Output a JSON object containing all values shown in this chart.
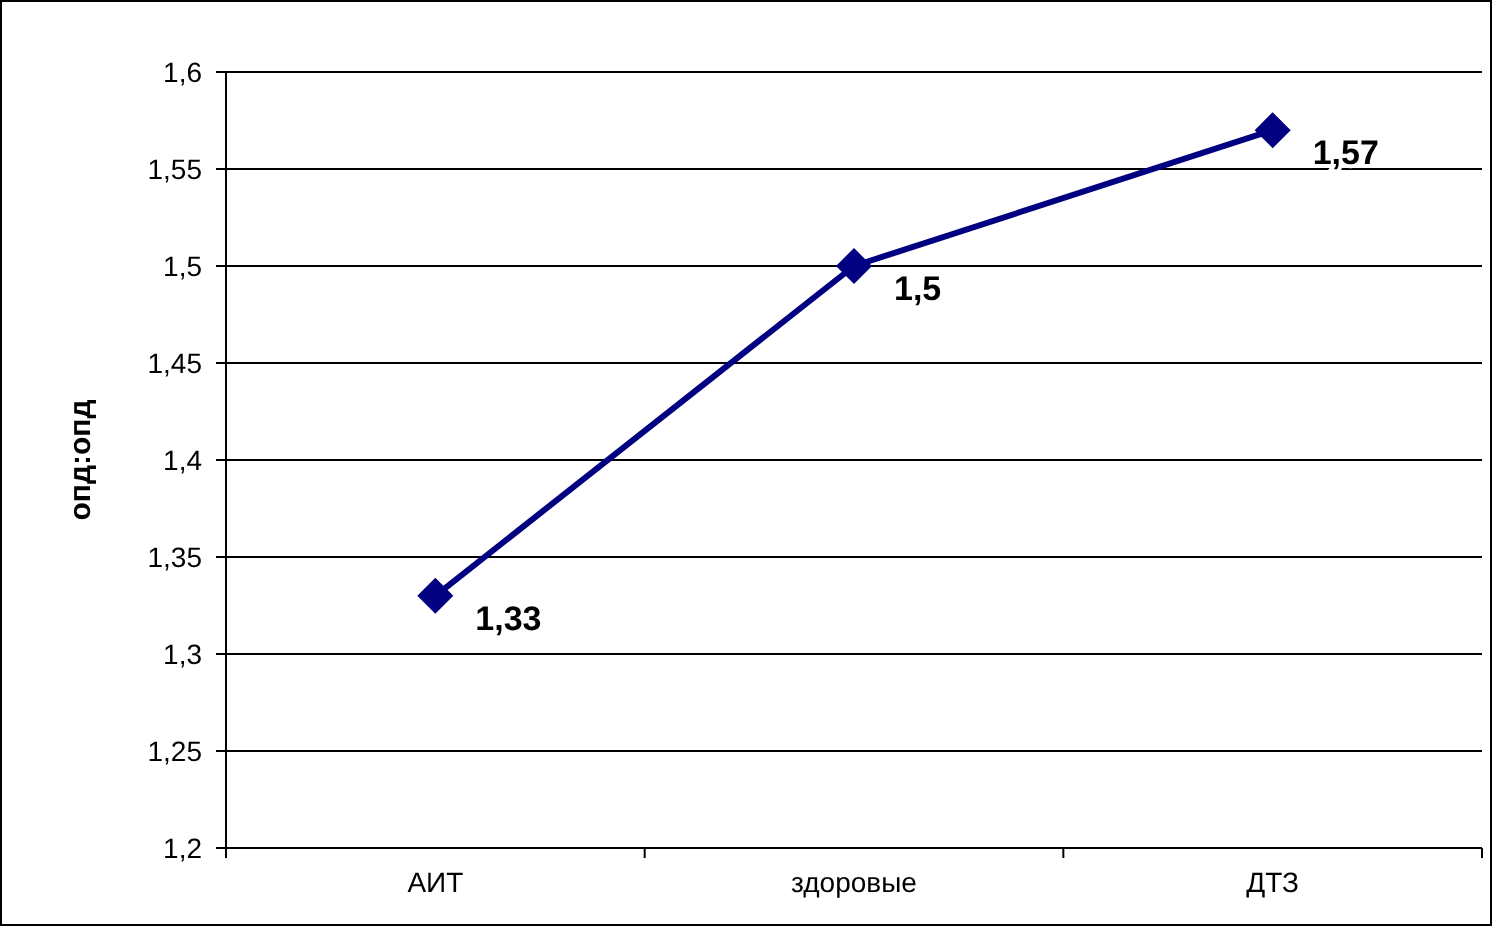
{
  "chart_data": {
    "type": "line",
    "ylabel": "опд:опд",
    "categories": [
      "АИТ",
      "здоровые",
      "ДТЗ"
    ],
    "series": [
      {
        "color": "#000080",
        "values": [
          1.33,
          1.5,
          1.57
        ]
      }
    ],
    "ylim": [
      1.2,
      1.6
    ],
    "yticks": [
      {
        "value": 1.2,
        "label": "1,2"
      },
      {
        "value": 1.25,
        "label": "1,25"
      },
      {
        "value": 1.3,
        "label": "1,3"
      },
      {
        "value": 1.35,
        "label": "1,35"
      },
      {
        "value": 1.4,
        "label": "1,4"
      },
      {
        "value": 1.45,
        "label": "1,45"
      },
      {
        "value": 1.5,
        "label": "1,5"
      },
      {
        "value": 1.55,
        "label": "1,55"
      },
      {
        "value": 1.6,
        "label": "1,6"
      }
    ],
    "grid": "y",
    "marker": "diamond",
    "line_style": "solid",
    "value_labels": [
      [
        "1,33",
        "1,5",
        "1,57"
      ]
    ]
  }
}
